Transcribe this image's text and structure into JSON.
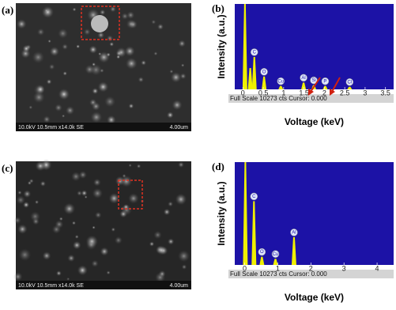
{
  "panels": [
    {
      "label": "(a)",
      "caption": "10.0kV 10.5mm x14.0k SE",
      "scale": "4.00um"
    },
    {
      "label": "(c)",
      "caption": "10.0kV 10.5mm x14.0k SE",
      "scale": "4.00um"
    }
  ],
  "chart_data": [
    {
      "type": "spectrum",
      "label": "(b)",
      "x_label": "Voltage (keV)",
      "y_label": "Intensity (a.u.)",
      "status": "Full Scale 10273 cts Cursor: 0.000",
      "x": [
        0.05,
        0.18,
        0.28,
        0.52,
        0.93,
        1.49,
        1.74,
        2.02,
        2.62
      ],
      "values": [
        100,
        25,
        38,
        15,
        4,
        8,
        5,
        4,
        3
      ],
      "peak_labels": [
        null,
        null,
        "C",
        "O",
        "Cu",
        "Al",
        "Si",
        "P",
        "Cl"
      ],
      "color": "#f0f000",
      "xlim": [
        -0.2,
        3.7
      ],
      "ylim": [
        0,
        100
      ],
      "xticks": [
        0,
        0.5,
        1,
        1.5,
        2,
        2.5,
        3,
        3.5
      ]
    },
    {
      "type": "spectrum",
      "label": "(d)",
      "x_label": "Voltage (keV)",
      "y_label": "Intensity (a.u.)",
      "status": "Full Scale 10273 cts Cursor: 0.000",
      "x": [
        0.02,
        0.28,
        0.52,
        0.93,
        1.49
      ],
      "values": [
        100,
        62,
        8,
        6,
        27
      ],
      "peak_labels": [
        null,
        "C",
        "O",
        "Cu",
        "Al"
      ],
      "color": "#f0f000",
      "xlim": [
        -0.3,
        4.5
      ],
      "ylim": [
        0,
        100
      ],
      "xticks": [
        0,
        1,
        2,
        3,
        4
      ]
    }
  ]
}
